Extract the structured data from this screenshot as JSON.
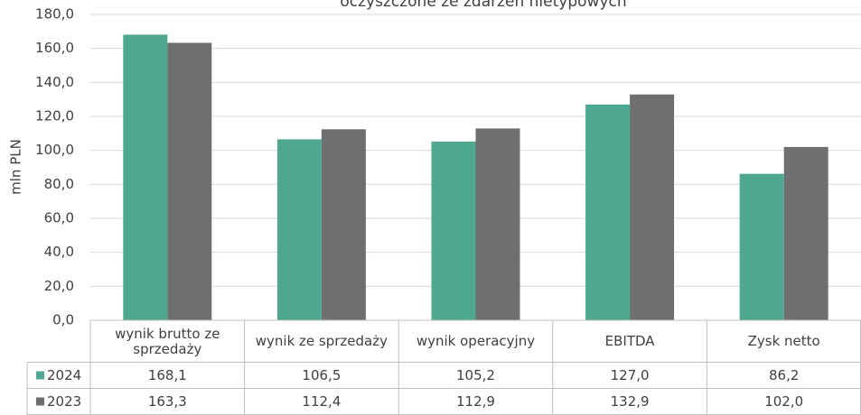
{
  "chart_data": {
    "type": "bar",
    "title": "oczyszczone ze zdarzeń nietypowych",
    "y_label": "mln PLN",
    "categories": [
      "wynik brutto ze sprzedaży",
      "wynik ze sprzedaży",
      "wynik operacyjny",
      "EBITDA",
      "Zysk netto"
    ],
    "series": [
      {
        "name": "2024",
        "color": "#4ea88f",
        "values": [
          168.1,
          106.5,
          105.2,
          127.0,
          86.2
        ],
        "value_labels": [
          "168,1",
          "106,5",
          "105,2",
          "127,0",
          "86,2"
        ]
      },
      {
        "name": "2023",
        "color": "#6f6f6f",
        "values": [
          163.3,
          112.4,
          112.9,
          132.9,
          102.0
        ],
        "value_labels": [
          "163,3",
          "112,4",
          "112,9",
          "132,9",
          "102,0"
        ]
      }
    ],
    "ylim": [
      0,
      180
    ],
    "yticks": [
      {
        "value": 0,
        "label": "0,0"
      },
      {
        "value": 20,
        "label": "20,0"
      },
      {
        "value": 40,
        "label": "40,0"
      },
      {
        "value": 60,
        "label": "60,0"
      },
      {
        "value": 80,
        "label": "80,0"
      },
      {
        "value": 100,
        "label": "100,0"
      },
      {
        "value": 120,
        "label": "120,0"
      },
      {
        "value": 140,
        "label": "140,0"
      },
      {
        "value": 160,
        "label": "160,0"
      },
      {
        "value": 180,
        "label": "180,0"
      }
    ],
    "grid": true
  }
}
